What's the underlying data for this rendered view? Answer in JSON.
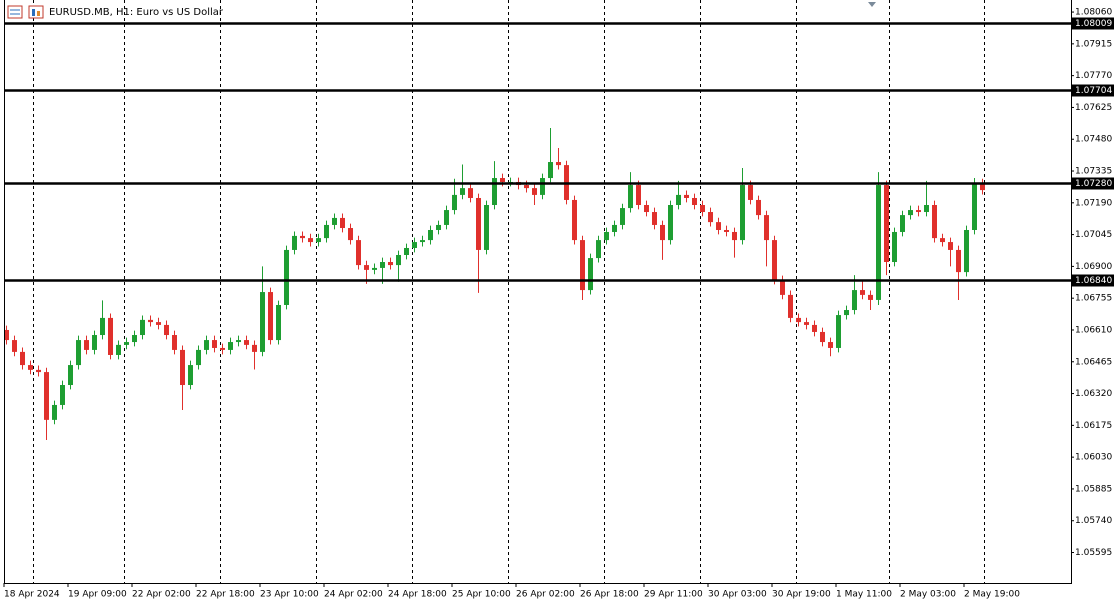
{
  "chart_data": {
    "type": "candlestick",
    "title": "EURUSD.MB, H1:  Euro vs US Dollar",
    "up_color": "#1e9e32",
    "down_color": "#e0302c",
    "ylim": [
      1.05456,
      1.08115
    ],
    "yticks": [
      {
        "value": 1.0806,
        "label": "1.08060"
      },
      1.07915,
      {
        "value": 1.0777,
        "label": "1.07770"
      },
      1.07625,
      {
        "value": 1.0748,
        "label": "1.07480"
      },
      1.07335,
      {
        "value": 1.0719,
        "label": "1.07190"
      },
      1.07045,
      {
        "value": 1.069,
        "label": "1.06900"
      },
      1.06755,
      {
        "value": 1.0661,
        "label": "1.06610"
      },
      1.06465,
      {
        "value": 1.0632,
        "label": "1.06320"
      },
      1.06175,
      {
        "value": 1.0603,
        "label": "1.06030"
      },
      1.05885,
      {
        "value": 1.0574,
        "label": "1.05740"
      },
      1.05595
    ],
    "levels": [
      1.08009,
      1.07704,
      {
        "value": 1.0728,
        "label": "1.07280"
      },
      {
        "value": 1.0684,
        "label": "1.06840"
      }
    ],
    "categories": [
      "18 Apr 2024",
      null,
      null,
      null,
      null,
      null,
      null,
      null,
      "19 Apr 09:00",
      null,
      null,
      null,
      null,
      null,
      null,
      null,
      "22 Apr 02:00",
      null,
      null,
      null,
      null,
      null,
      null,
      null,
      "22 Apr 18:00",
      null,
      null,
      null,
      null,
      null,
      null,
      null,
      "23 Apr 10:00",
      null,
      null,
      null,
      null,
      null,
      null,
      null,
      "24 Apr 02:00",
      null,
      null,
      null,
      null,
      null,
      null,
      null,
      "24 Apr 18:00",
      null,
      null,
      null,
      null,
      null,
      null,
      null,
      "25 Apr 10:00",
      null,
      null,
      null,
      null,
      null,
      null,
      null,
      "26 Apr 02:00",
      null,
      null,
      null,
      null,
      null,
      null,
      null,
      "26 Apr 18:00",
      null,
      null,
      null,
      null,
      null,
      null,
      null,
      "29 Apr 11:00",
      null,
      null,
      null,
      null,
      null,
      null,
      null,
      "30 Apr 03:00",
      null,
      null,
      null,
      null,
      null,
      null,
      null,
      "30 Apr 19:00",
      null,
      null,
      null,
      null,
      null,
      null,
      null,
      "1 May 11:00",
      null,
      null,
      null,
      null,
      null,
      null,
      null,
      "2 May 03:00",
      null,
      null,
      null,
      null,
      null,
      null,
      null,
      "2 May 19:00",
      null,
      null
    ],
    "candles": [
      [
        1.0661,
        1.0663,
        1.06544,
        1.06564
      ],
      [
        1.06564,
        1.06584,
        1.0649,
        1.0651
      ],
      [
        1.0651,
        1.0653,
        1.0643,
        1.0645
      ],
      [
        1.0645,
        1.0647,
        1.06408,
        1.06428
      ],
      [
        1.06428,
        1.06448,
        1.06398,
        1.06418
      ],
      [
        1.06418,
        1.06438,
        1.06108,
        1.062
      ],
      [
        1.062,
        1.06288,
        1.0618,
        1.06268
      ],
      [
        1.06268,
        1.06379,
        1.06248,
        1.06359
      ],
      [
        1.06359,
        1.0647,
        1.06339,
        1.0645
      ],
      [
        1.0645,
        1.06584,
        1.0643,
        1.06564
      ],
      [
        1.06564,
        1.06584,
        1.06499,
        1.06519
      ],
      [
        1.06519,
        1.06607,
        1.06499,
        1.06587
      ],
      [
        1.06587,
        1.06745,
        1.06567,
        1.06665
      ],
      [
        1.06665,
        1.06685,
        1.06476,
        1.06496
      ],
      [
        1.06496,
        1.06562,
        1.06476,
        1.06542
      ],
      [
        1.06542,
        1.06575,
        1.06522,
        1.06555
      ],
      [
        1.06555,
        1.06607,
        1.06535,
        1.06587
      ],
      [
        1.06587,
        1.06676,
        1.06567,
        1.06656
      ],
      [
        1.06656,
        1.06676,
        1.06626,
        1.06646
      ],
      [
        1.06646,
        1.06666,
        1.06613,
        1.06633
      ],
      [
        1.06633,
        1.06653,
        1.06567,
        1.06587
      ],
      [
        1.06587,
        1.06607,
        1.06499,
        1.06519
      ],
      [
        1.06519,
        1.06539,
        1.06245,
        1.06359
      ],
      [
        1.06359,
        1.0647,
        1.06339,
        1.0645
      ],
      [
        1.0645,
        1.06539,
        1.0643,
        1.06519
      ],
      [
        1.06519,
        1.06584,
        1.06499,
        1.06564
      ],
      [
        1.06564,
        1.06584,
        1.06508,
        1.06528
      ],
      [
        1.06528,
        1.06548,
        1.06499,
        1.06519
      ],
      [
        1.06519,
        1.06575,
        1.06499,
        1.06555
      ],
      [
        1.06555,
        1.06584,
        1.06535,
        1.06564
      ],
      [
        1.06564,
        1.06584,
        1.06522,
        1.06542
      ],
      [
        1.06542,
        1.06562,
        1.0643,
        1.0651
      ],
      [
        1.0651,
        1.069,
        1.0649,
        1.06783
      ],
      [
        1.06783,
        1.06803,
        1.06544,
        1.06564
      ],
      [
        1.06564,
        1.06744,
        1.06544,
        1.06724
      ],
      [
        1.06724,
        1.06995,
        1.06704,
        1.06975
      ],
      [
        1.06975,
        1.07059,
        1.06955,
        1.07039
      ],
      [
        1.07039,
        1.07059,
        1.07009,
        1.07029
      ],
      [
        1.07029,
        1.07049,
        1.06991,
        1.07011
      ],
      [
        1.07011,
        1.07049,
        1.06991,
        1.07029
      ],
      [
        1.07029,
        1.07109,
        1.07009,
        1.07089
      ],
      [
        1.07089,
        1.07141,
        1.07069,
        1.07121
      ],
      [
        1.07121,
        1.07141,
        1.07055,
        1.07075
      ],
      [
        1.07075,
        1.07095,
        1.07,
        1.0702
      ],
      [
        1.0702,
        1.0704,
        1.06886,
        1.06906
      ],
      [
        1.06906,
        1.06926,
        1.0682,
        1.06884
      ],
      [
        1.06884,
        1.06913,
        1.06864,
        1.06893
      ],
      [
        1.06893,
        1.0694,
        1.0682,
        1.0692
      ],
      [
        1.0692,
        1.0694,
        1.06886,
        1.06906
      ],
      [
        1.06906,
        1.06972,
        1.0683,
        1.06952
      ],
      [
        1.06952,
        1.07004,
        1.06932,
        1.06984
      ],
      [
        1.06984,
        1.07031,
        1.06964,
        1.07011
      ],
      [
        1.07011,
        1.0704,
        1.06991,
        1.0702
      ],
      [
        1.0702,
        1.07086,
        1.07,
        1.07066
      ],
      [
        1.07066,
        1.07109,
        1.07046,
        1.07089
      ],
      [
        1.07089,
        1.07177,
        1.07069,
        1.07157
      ],
      [
        1.07157,
        1.073,
        1.07137,
        1.07226
      ],
      [
        1.07226,
        1.07365,
        1.07206,
        1.07257
      ],
      [
        1.07257,
        1.07277,
        1.07192,
        1.07212
      ],
      [
        1.07212,
        1.07232,
        1.06779,
        1.06975
      ],
      [
        1.06975,
        1.072,
        1.06955,
        1.0718
      ],
      [
        1.0718,
        1.0738,
        1.0716,
        1.07303
      ],
      [
        1.07303,
        1.07323,
        1.07265,
        1.07285
      ],
      [
        1.07285,
        1.07305,
        1.07265,
        1.07285
      ],
      [
        1.07285,
        1.07305,
        1.07251,
        1.07271
      ],
      [
        1.07271,
        1.07291,
        1.07237,
        1.07257
      ],
      [
        1.07257,
        1.07277,
        1.0718,
        1.07226
      ],
      [
        1.07226,
        1.07323,
        1.07206,
        1.07303
      ],
      [
        1.07303,
        1.07531,
        1.07283,
        1.07376
      ],
      [
        1.07376,
        1.0744,
        1.07342,
        1.07362
      ],
      [
        1.07362,
        1.07382,
        1.07183,
        1.07203
      ],
      [
        1.07203,
        1.07223,
        1.07,
        1.0702
      ],
      [
        1.0702,
        1.0704,
        1.06747,
        1.06792
      ],
      [
        1.06792,
        1.06958,
        1.06772,
        1.06938
      ],
      [
        1.06938,
        1.0704,
        1.06918,
        1.0702
      ],
      [
        1.0702,
        1.07077,
        1.07,
        1.07057
      ],
      [
        1.07057,
        1.07109,
        1.07037,
        1.07089
      ],
      [
        1.07089,
        1.07186,
        1.07069,
        1.07166
      ],
      [
        1.07166,
        1.0733,
        1.07146,
        1.07271
      ],
      [
        1.07271,
        1.07291,
        1.0716,
        1.0718
      ],
      [
        1.0718,
        1.072,
        1.07128,
        1.07148
      ],
      [
        1.07148,
        1.07168,
        1.07069,
        1.07089
      ],
      [
        1.07089,
        1.07109,
        1.0693,
        1.0702
      ],
      [
        1.0702,
        1.072,
        1.07,
        1.0718
      ],
      [
        1.0718,
        1.0729,
        1.0716,
        1.07226
      ],
      [
        1.07226,
        1.07246,
        1.07192,
        1.07212
      ],
      [
        1.07212,
        1.07232,
        1.0716,
        1.0718
      ],
      [
        1.0718,
        1.072,
        1.07128,
        1.07148
      ],
      [
        1.07148,
        1.07168,
        1.07082,
        1.07102
      ],
      [
        1.07102,
        1.07122,
        1.07046,
        1.07066
      ],
      [
        1.07066,
        1.07086,
        1.07037,
        1.07057
      ],
      [
        1.07057,
        1.07077,
        1.0694,
        1.0702
      ],
      [
        1.0702,
        1.07349,
        1.07,
        1.07271
      ],
      [
        1.07271,
        1.07291,
        1.07183,
        1.07203
      ],
      [
        1.07203,
        1.07223,
        1.07114,
        1.07134
      ],
      [
        1.07134,
        1.07154,
        1.069,
        1.0702
      ],
      [
        1.0702,
        1.0704,
        1.06818,
        1.06838
      ],
      [
        1.06838,
        1.06858,
        1.0675,
        1.0677
      ],
      [
        1.0677,
        1.0679,
        1.06645,
        1.06665
      ],
      [
        1.06665,
        1.06685,
        1.06626,
        1.06646
      ],
      [
        1.06646,
        1.06666,
        1.06613,
        1.06633
      ],
      [
        1.06633,
        1.06653,
        1.06581,
        1.06601
      ],
      [
        1.06601,
        1.06621,
        1.06535,
        1.06555
      ],
      [
        1.06555,
        1.06575,
        1.0649,
        1.06528
      ],
      [
        1.06528,
        1.06698,
        1.06508,
        1.06678
      ],
      [
        1.06678,
        1.06721,
        1.06658,
        1.06701
      ],
      [
        1.06701,
        1.0686,
        1.06681,
        1.06792
      ],
      [
        1.06792,
        1.0684,
        1.0675,
        1.0677
      ],
      [
        1.0677,
        1.0679,
        1.06701,
        1.06747
      ],
      [
        1.06747,
        1.0733,
        1.06724,
        1.07271
      ],
      [
        1.07271,
        1.07291,
        1.0686,
        1.0692
      ],
      [
        1.0692,
        1.07077,
        1.069,
        1.07057
      ],
      [
        1.07057,
        1.07154,
        1.07037,
        1.07134
      ],
      [
        1.07134,
        1.07177,
        1.07114,
        1.07157
      ],
      [
        1.07157,
        1.07177,
        1.07128,
        1.07148
      ],
      [
        1.07148,
        1.0729,
        1.07128,
        1.0718
      ],
      [
        1.0718,
        1.072,
        1.07009,
        1.07029
      ],
      [
        1.07029,
        1.07049,
        1.06991,
        1.07011
      ],
      [
        1.07011,
        1.07031,
        1.069,
        1.06975
      ],
      [
        1.06975,
        1.06995,
        1.06747,
        1.06874
      ],
      [
        1.06874,
        1.07086,
        1.06854,
        1.07066
      ],
      [
        1.07066,
        1.07303,
        1.07046,
        1.0728
      ],
      [
        1.0728,
        1.073,
        1.07228,
        1.07248
      ]
    ]
  }
}
